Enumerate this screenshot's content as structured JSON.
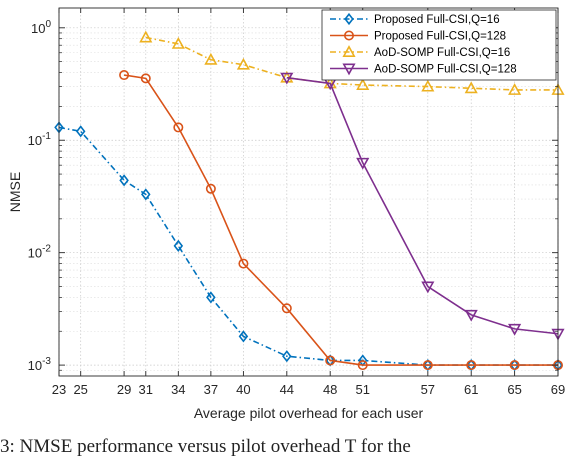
{
  "chart_data": {
    "type": "line",
    "title": "",
    "xlabel": "Average pilot overhead for each user",
    "ylabel": "NMSE",
    "yscale": "log",
    "ylim": [
      0.0008,
      1.5
    ],
    "xlim": [
      23,
      69
    ],
    "grid": true,
    "legend_position": "top-right",
    "x_ticks": [
      23,
      25,
      29,
      31,
      34,
      37,
      40,
      44,
      48,
      51,
      57,
      61,
      65,
      69
    ],
    "x_tick_labels": [
      "23",
      "25",
      "29",
      "31",
      "34",
      "37",
      "40",
      "44",
      "48",
      "51",
      "57",
      "61",
      "65",
      "69"
    ],
    "y_ticks": [
      {
        "value": 0.001,
        "base": "10",
        "exp": "-3"
      },
      {
        "value": 0.01,
        "base": "10",
        "exp": "-2"
      },
      {
        "value": 0.1,
        "base": "10",
        "exp": "-1"
      },
      {
        "value": 1,
        "base": "10",
        "exp": "0"
      }
    ],
    "series": [
      {
        "name": "Proposed Full-CSI,Q=16",
        "color": "#0072BD",
        "dash": "dashdot",
        "marker": "diamond",
        "x": [
          23,
          25,
          29,
          31,
          34,
          37,
          40,
          44,
          48,
          51,
          57,
          61,
          65,
          69
        ],
        "y": [
          0.13,
          0.12,
          0.044,
          0.033,
          0.0115,
          0.004,
          0.0018,
          0.0012,
          0.0011,
          0.0011,
          0.001,
          0.001,
          0.001,
          0.001
        ]
      },
      {
        "name": "Proposed Full-CSI,Q=128",
        "color": "#D95319",
        "dash": "solid",
        "marker": "circle",
        "x": [
          29,
          31,
          34,
          37,
          40,
          44,
          48,
          51,
          57,
          61,
          65,
          69
        ],
        "y": [
          0.38,
          0.355,
          0.13,
          0.037,
          0.008,
          0.0032,
          0.0011,
          0.001,
          0.001,
          0.001,
          0.001,
          0.001
        ]
      },
      {
        "name": "AoD-SOMP Full-CSI,Q=16",
        "color": "#EDB120",
        "dash": "dashdot",
        "marker": "triangle-up",
        "x": [
          31,
          34,
          37,
          40,
          44,
          48,
          51,
          57,
          61,
          65,
          69
        ],
        "y": [
          0.82,
          0.72,
          0.52,
          0.47,
          0.36,
          0.32,
          0.31,
          0.3,
          0.29,
          0.28,
          0.28
        ]
      },
      {
        "name": "AoD-SOMP Full-CSI,Q=128",
        "color": "#7E2F8E",
        "dash": "solid",
        "marker": "triangle-down",
        "x": [
          44,
          48,
          51,
          57,
          61,
          65,
          69
        ],
        "y": [
          0.36,
          0.32,
          0.063,
          0.005,
          0.0028,
          0.0021,
          0.0019
        ]
      }
    ]
  },
  "caption": {
    "text": "3:  NMSE  performance  versus  pilot  overhead  T  for  the"
  }
}
